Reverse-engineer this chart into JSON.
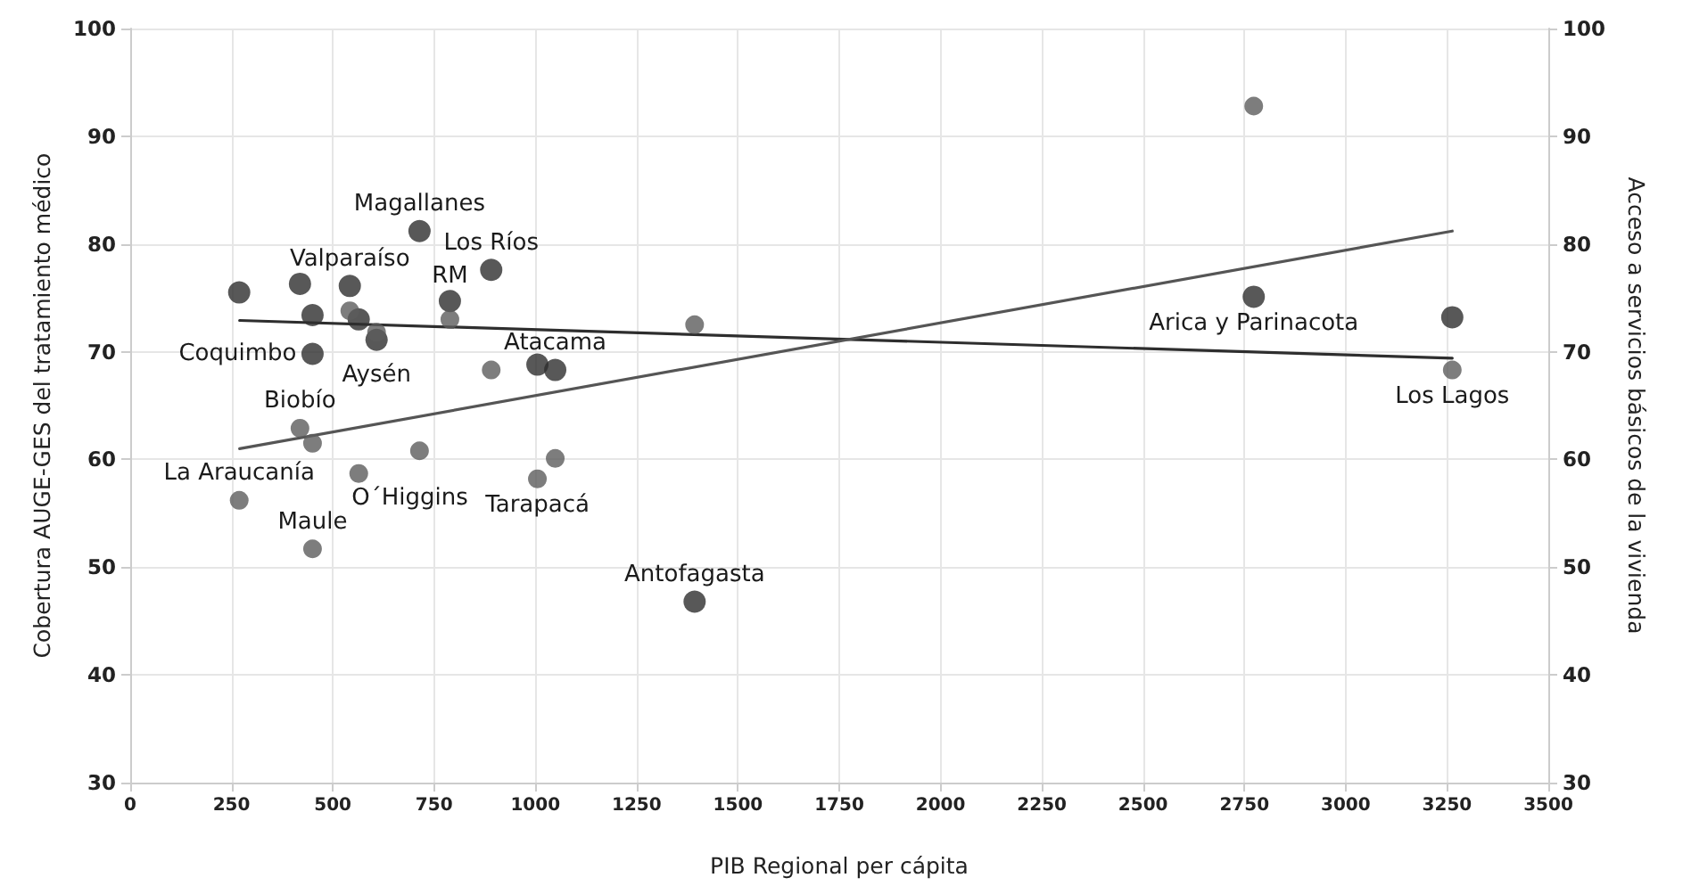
{
  "chart_data": {
    "type": "scatter",
    "xlabel": "PIB Regional per cápita",
    "ylabel": "Cobertura AUGE-GES del tratamiento médico",
    "y2label": "Acceso a servicios básicos de la vivienda",
    "xlim": [
      0,
      3500
    ],
    "xticks": [
      0,
      250,
      500,
      750,
      1000,
      1250,
      1500,
      1750,
      2000,
      2250,
      2500,
      2750,
      3000,
      3250,
      3500
    ],
    "ylim": [
      30,
      100
    ],
    "yticks": [
      30,
      40,
      50,
      60,
      70,
      80,
      90,
      100
    ],
    "y2lim": [
      30,
      100
    ],
    "y2ticks": [
      30,
      40,
      50,
      60,
      70,
      80,
      90,
      100
    ],
    "grid": true,
    "marker": "circle",
    "series": [
      {
        "color": "#2e2e2e",
        "x": [
          269,
          419,
          450,
          450,
          542,
          564,
          608,
          714,
          789,
          891,
          1005,
          1049,
          1393,
          2773,
          3263
        ],
        "values": [
          75.5,
          76.3,
          73.4,
          69.8,
          76.1,
          73.0,
          71.1,
          81.2,
          74.7,
          77.6,
          68.8,
          68.3,
          46.8,
          75.1,
          73.2
        ]
      },
      {
        "color": "#5c5c5c",
        "x": [
          269,
          419,
          450,
          450,
          542,
          564,
          608,
          714,
          789,
          891,
          1005,
          1049,
          1393,
          2773,
          3263
        ],
        "values": [
          56.2,
          62.9,
          61.5,
          51.7,
          73.8,
          58.7,
          71.8,
          60.8,
          73.0,
          68.3,
          58.2,
          60.1,
          72.5,
          92.8,
          68.3
        ]
      },
      {
        "type": "line",
        "marker": "none",
        "color": "#2e2e2e",
        "x": [
          270,
          3263
        ],
        "values": [
          72.9,
          69.4
        ]
      },
      {
        "type": "line",
        "marker": "none",
        "color": "#555555",
        "x": [
          270,
          3263
        ],
        "values": [
          61.0,
          81.2
        ]
      }
    ],
    "annotations": [
      {
        "text": "Magallanes",
        "x": 714,
        "y": 81.2
      },
      {
        "text": "Los Ríos",
        "x": 891,
        "y": 77.6
      },
      {
        "text": "Valparaíso",
        "x": 542,
        "y": 76.1
      },
      {
        "text": "Aysén",
        "x": 608,
        "y": 71.8
      },
      {
        "text": "RM",
        "x": 789,
        "y": 73.0
      },
      {
        "text": "Coquimbo",
        "x": 450,
        "y": 69.8
      },
      {
        "text": "Atacama",
        "x": 1049,
        "y": 68.3
      },
      {
        "text": "Biobío",
        "x": 419,
        "y": 62.9
      },
      {
        "text": "La Araucanía",
        "x": 269,
        "y": 56.2
      },
      {
        "text": "O´Higgins",
        "x": 564,
        "y": 58.7
      },
      {
        "text": "Tarapacá",
        "x": 1005,
        "y": 58.2
      },
      {
        "text": "Maule",
        "x": 450,
        "y": 51.7
      },
      {
        "text": "Antofagasta",
        "x": 1393,
        "y": 46.8
      },
      {
        "text": "Arica y Parinacota",
        "x": 2773,
        "y": 75.1
      },
      {
        "text": "Los Lagos",
        "x": 3263,
        "y": 68.3
      }
    ]
  }
}
